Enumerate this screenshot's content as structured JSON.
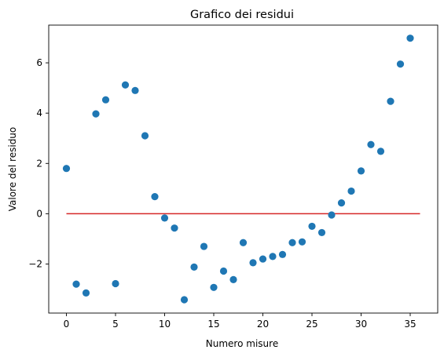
{
  "chart_data": {
    "type": "scatter",
    "title": "Grafico dei residui",
    "xlabel": "Numero misure",
    "ylabel": "Valore del residuo",
    "xlim": [
      -1.8,
      37.8
    ],
    "ylim": [
      -3.95,
      7.5
    ],
    "xticks": [
      0,
      5,
      10,
      15,
      20,
      25,
      30,
      35
    ],
    "yticks": [
      -2,
      0,
      2,
      4,
      6
    ],
    "grid": false,
    "point_color": "#1f77b4",
    "reference_line": {
      "x": [
        0,
        36
      ],
      "y": [
        0,
        0
      ],
      "color": "#d62728"
    },
    "series": [
      {
        "x": [
          0,
          1,
          2,
          3,
          4,
          5,
          6,
          7,
          8,
          9,
          10,
          11,
          12,
          13,
          14,
          15,
          16,
          17,
          18,
          19,
          20,
          21,
          22,
          23,
          24,
          25,
          26,
          27,
          28,
          29,
          30,
          31,
          32,
          33,
          34,
          35
        ],
        "y": [
          1.8,
          -2.8,
          -3.15,
          3.97,
          4.53,
          -2.78,
          5.12,
          4.9,
          3.1,
          0.68,
          -0.17,
          -0.57,
          -3.42,
          -2.12,
          -1.3,
          -2.93,
          -2.28,
          -2.62,
          -1.15,
          -1.95,
          -1.8,
          -1.7,
          -1.62,
          -1.15,
          -1.12,
          -0.5,
          -0.75,
          -0.05,
          0.43,
          0.9,
          1.7,
          2.75,
          2.48,
          4.47,
          5.95,
          6.98
        ]
      }
    ]
  }
}
